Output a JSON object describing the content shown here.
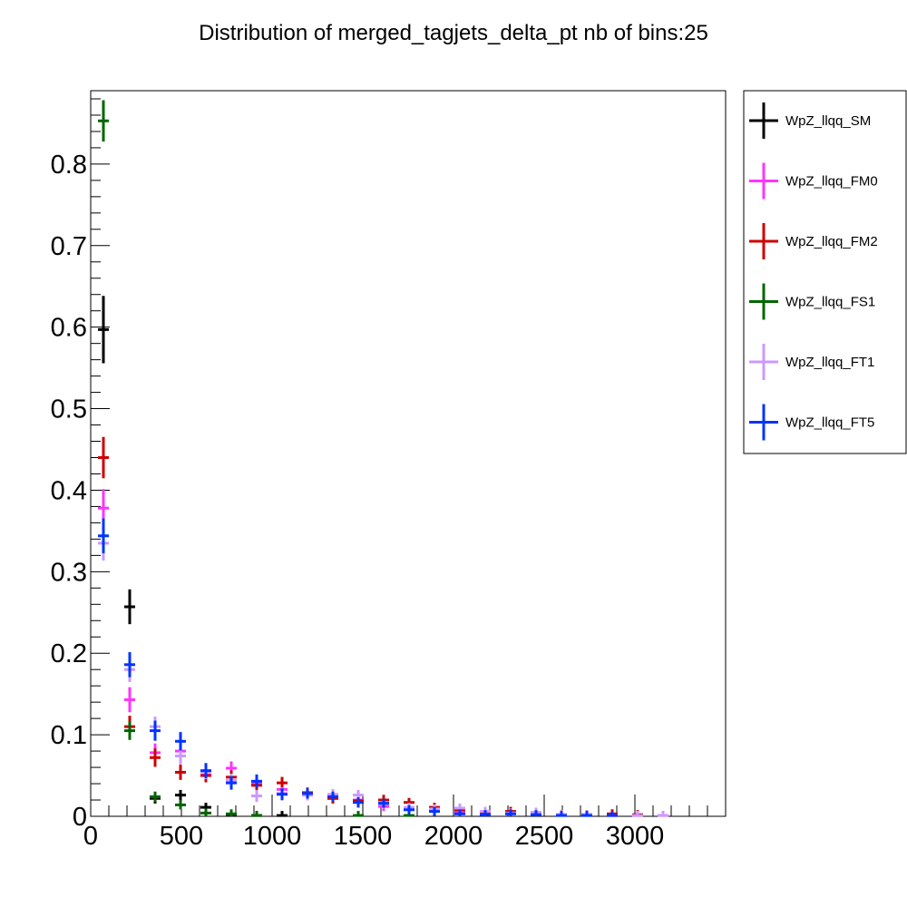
{
  "chart_data": {
    "type": "scatter",
    "title": "Distribution of merged_tagjets_delta_pt nb of bins:25",
    "xlabel": "",
    "ylabel": "",
    "xlim": [
      0,
      3500
    ],
    "ylim": [
      0,
      0.89
    ],
    "x_ticks": [
      0,
      500,
      1000,
      1500,
      2000,
      2500,
      3000
    ],
    "x_tick_labels": [
      "0",
      "500",
      "1000",
      "1500",
      "2000",
      "2500",
      "3000"
    ],
    "y_ticks": [
      0,
      0.1,
      0.2,
      0.3,
      0.4,
      0.5,
      0.6,
      0.7,
      0.8
    ],
    "y_tick_labels": [
      "0",
      "0.1",
      "0.2",
      "0.3",
      "0.4",
      "0.5",
      "0.6",
      "0.7",
      "0.8"
    ],
    "legend_position": "outside-right",
    "series": [
      {
        "name": "WpZ_llqq_SM",
        "color": "#000000",
        "points": [
          [
            70,
            0.597,
            28,
            0.038
          ],
          [
            215,
            0.257,
            28,
            0.018
          ],
          [
            355,
            0.022,
            28,
            0.003
          ],
          [
            495,
            0.026,
            28,
            0.003
          ],
          [
            635,
            0.011,
            28,
            0.002
          ],
          [
            775,
            0.002,
            28,
            0.001
          ],
          [
            915,
            0.001,
            28,
            0.001
          ],
          [
            1055,
            0.001,
            28,
            0.001
          ]
        ]
      },
      {
        "name": "WpZ_llqq_FM0",
        "color": "#ff33ff",
        "points": [
          [
            70,
            0.378,
            28,
            0.02
          ],
          [
            215,
            0.143,
            28,
            0.012
          ],
          [
            355,
            0.078,
            28,
            0.008
          ],
          [
            495,
            0.08,
            28,
            0.007
          ],
          [
            635,
            0.051,
            28,
            0.005
          ],
          [
            775,
            0.059,
            28,
            0.005
          ],
          [
            915,
            0.04,
            28,
            0.004
          ],
          [
            1055,
            0.033,
            28,
            0.004
          ],
          [
            1195,
            0.026,
            28,
            0.003
          ],
          [
            1335,
            0.022,
            28,
            0.003
          ],
          [
            1475,
            0.02,
            28,
            0.003
          ],
          [
            1615,
            0.012,
            28,
            0.002
          ],
          [
            1755,
            0.009,
            28,
            0.002
          ],
          [
            1895,
            0.007,
            28,
            0.002
          ],
          [
            2035,
            0.006,
            28,
            0.002
          ],
          [
            2175,
            0.004,
            28,
            0.001
          ],
          [
            2315,
            0.004,
            28,
            0.001
          ],
          [
            2455,
            0.003,
            28,
            0.001
          ],
          [
            2595,
            0.002,
            28,
            0.001
          ],
          [
            2735,
            0.002,
            28,
            0.001
          ],
          [
            2875,
            0.001,
            28,
            0.001
          ],
          [
            3015,
            0.001,
            28,
            0.001
          ],
          [
            3155,
            0.001,
            28,
            0.001
          ]
        ]
      },
      {
        "name": "WpZ_llqq_FM2",
        "color": "#cc0000",
        "points": [
          [
            70,
            0.44,
            28,
            0.022
          ],
          [
            215,
            0.11,
            28,
            0.01
          ],
          [
            355,
            0.072,
            28,
            0.008
          ],
          [
            495,
            0.054,
            28,
            0.006
          ],
          [
            635,
            0.05,
            28,
            0.005
          ],
          [
            775,
            0.048,
            28,
            0.005
          ],
          [
            915,
            0.038,
            28,
            0.004
          ],
          [
            1055,
            0.041,
            28,
            0.004
          ],
          [
            1195,
            0.029,
            28,
            0.003
          ],
          [
            1335,
            0.022,
            28,
            0.003
          ],
          [
            1475,
            0.019,
            28,
            0.003
          ],
          [
            1615,
            0.02,
            28,
            0.003
          ],
          [
            1755,
            0.017,
            28,
            0.002
          ],
          [
            1895,
            0.011,
            28,
            0.002
          ],
          [
            2035,
            0.008,
            28,
            0.002
          ],
          [
            2175,
            0.005,
            28,
            0.001
          ],
          [
            2315,
            0.006,
            28,
            0.001
          ],
          [
            2455,
            0.004,
            28,
            0.001
          ],
          [
            2595,
            0.002,
            28,
            0.001
          ],
          [
            2735,
            0.002,
            28,
            0.001
          ],
          [
            2875,
            0.003,
            28,
            0.001
          ],
          [
            3015,
            0.002,
            28,
            0.001
          ]
        ]
      },
      {
        "name": "WpZ_llqq_FS1",
        "color": "#006600",
        "points": [
          [
            70,
            0.853,
            28,
            0.022
          ],
          [
            215,
            0.105,
            28,
            0.008
          ],
          [
            355,
            0.024,
            28,
            0.003
          ],
          [
            495,
            0.014,
            28,
            0.002
          ],
          [
            635,
            0.004,
            28,
            0.001
          ],
          [
            775,
            0.003,
            28,
            0.001
          ],
          [
            915,
            0.001,
            28,
            0.001
          ],
          [
            1475,
            0.001,
            28,
            0.001
          ],
          [
            1755,
            0.001,
            28,
            0.001
          ]
        ]
      },
      {
        "name": "WpZ_llqq_FT1",
        "color": "#cc99ff",
        "points": [
          [
            70,
            0.335,
            28,
            0.018
          ],
          [
            215,
            0.18,
            28,
            0.012
          ],
          [
            355,
            0.11,
            28,
            0.009
          ],
          [
            495,
            0.074,
            28,
            0.007
          ],
          [
            635,
            0.055,
            28,
            0.006
          ],
          [
            775,
            0.044,
            28,
            0.005
          ],
          [
            915,
            0.025,
            28,
            0.004
          ],
          [
            1055,
            0.028,
            28,
            0.004
          ],
          [
            1195,
            0.026,
            28,
            0.003
          ],
          [
            1335,
            0.027,
            28,
            0.003
          ],
          [
            1475,
            0.026,
            28,
            0.003
          ],
          [
            1615,
            0.015,
            28,
            0.002
          ],
          [
            1755,
            0.011,
            28,
            0.002
          ],
          [
            1895,
            0.009,
            28,
            0.002
          ],
          [
            2035,
            0.01,
            28,
            0.002
          ],
          [
            2175,
            0.006,
            28,
            0.001
          ],
          [
            2315,
            0.004,
            28,
            0.001
          ],
          [
            2455,
            0.005,
            28,
            0.001
          ],
          [
            2595,
            0.002,
            28,
            0.001
          ],
          [
            2735,
            0.002,
            28,
            0.001
          ],
          [
            2875,
            0.001,
            28,
            0.001
          ],
          [
            3015,
            0.001,
            28,
            0.001
          ],
          [
            3155,
            0.001,
            28,
            0.001
          ]
        ]
      },
      {
        "name": "WpZ_llqq_FT5",
        "color": "#0033ff",
        "points": [
          [
            70,
            0.344,
            28,
            0.018
          ],
          [
            215,
            0.186,
            28,
            0.012
          ],
          [
            355,
            0.105,
            28,
            0.009
          ],
          [
            495,
            0.092,
            28,
            0.008
          ],
          [
            635,
            0.056,
            28,
            0.006
          ],
          [
            775,
            0.041,
            28,
            0.005
          ],
          [
            915,
            0.043,
            28,
            0.005
          ],
          [
            1055,
            0.027,
            28,
            0.004
          ],
          [
            1195,
            0.028,
            28,
            0.003
          ],
          [
            1335,
            0.024,
            28,
            0.003
          ],
          [
            1475,
            0.017,
            28,
            0.003
          ],
          [
            1615,
            0.016,
            28,
            0.002
          ],
          [
            1755,
            0.008,
            28,
            0.002
          ],
          [
            1895,
            0.006,
            28,
            0.002
          ],
          [
            2035,
            0.003,
            28,
            0.001
          ],
          [
            2175,
            0.002,
            28,
            0.001
          ],
          [
            2315,
            0.003,
            28,
            0.001
          ],
          [
            2455,
            0.002,
            28,
            0.001
          ],
          [
            2595,
            0.001,
            28,
            0.001
          ],
          [
            2735,
            0.001,
            28,
            0.001
          ],
          [
            2875,
            0.001,
            28,
            0.001
          ]
        ]
      }
    ]
  }
}
